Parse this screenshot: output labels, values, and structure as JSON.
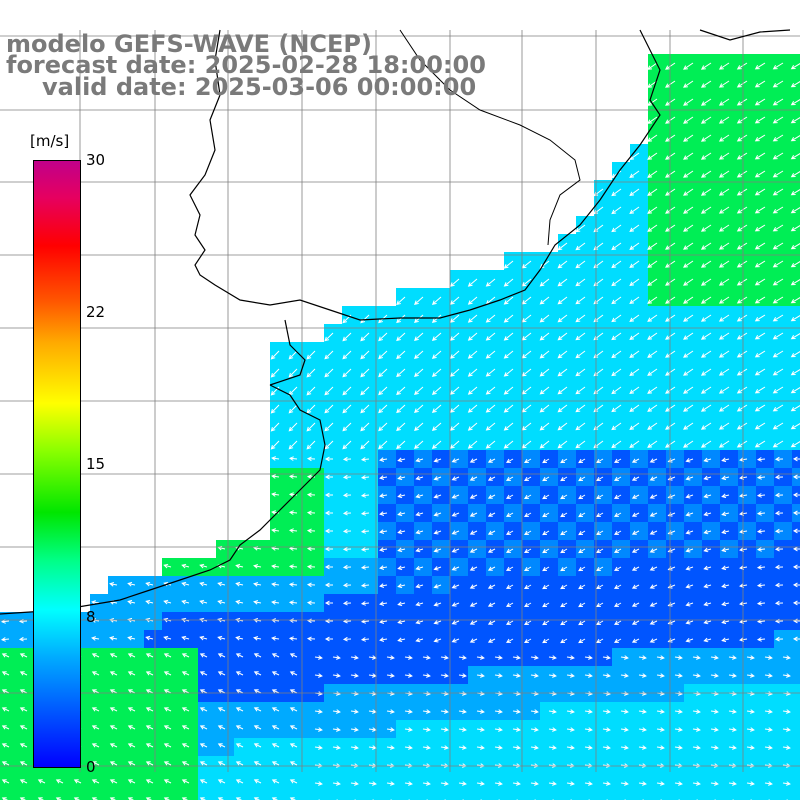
{
  "title": {
    "line1": "modelo GEFS-WAVE (NCEP)",
    "line2": "forecast date: 2025-02-28 18:00:00",
    "line3": "valid date: 2025-03-06 00:00:00"
  },
  "colorbar": {
    "unit": "[m/s]",
    "ticks": [
      "30",
      "22",
      "15",
      "8",
      "0"
    ],
    "min": 0,
    "max": 30,
    "colors": [
      "#0000ff",
      "#00aaff",
      "#00ffff",
      "#00ff88",
      "#00e600",
      "#88ff00",
      "#ffff00",
      "#ffaa00",
      "#ff5500",
      "#ff0000",
      "#c0008a"
    ]
  },
  "map": {
    "ocean_speed_colors": {
      "low": "#0055ff",
      "mid": "#00ddff",
      "high": "#00ee55"
    },
    "land_color": "#ffffff",
    "grid_color": "#7f7f7f",
    "arrow_color": "#ffffff",
    "coast_color": "#000000"
  }
}
